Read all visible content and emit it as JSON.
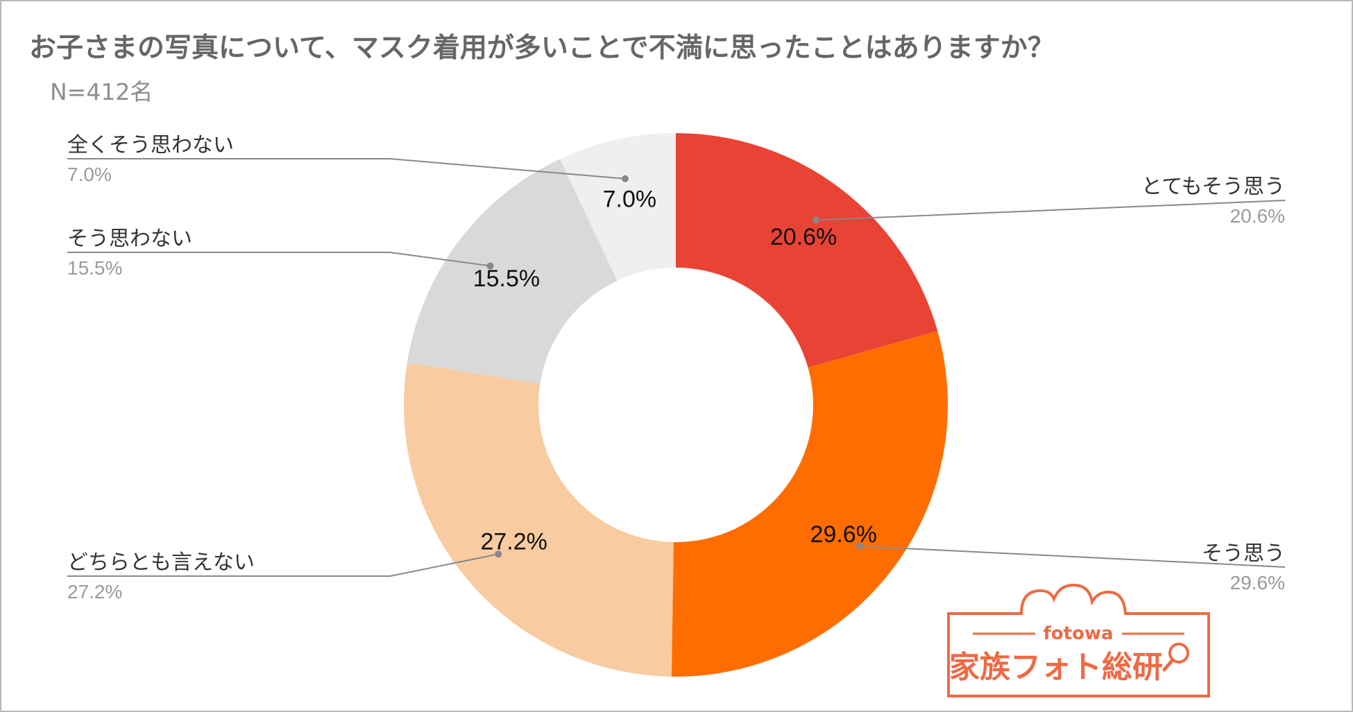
{
  "title": "お子さまの写真について、マスク着用が多いことで不満に思ったことはありますか？",
  "sample_size": "N=412名",
  "colors": {
    "strongly_agree": "#e94335",
    "agree": "#ff6d00",
    "neutral": "#f8cba0",
    "disagree": "#d9d9d9",
    "strongly_disagree": "#efefef",
    "leader": "#888888",
    "logo": "#ee6a43"
  },
  "chart_data": {
    "type": "pie",
    "donut": true,
    "unit": "%",
    "slices": [
      {
        "name": "とてもそう思う",
        "value": 20.6,
        "label": "20.6%",
        "color": "#e94335"
      },
      {
        "name": "そう思う",
        "value": 29.6,
        "label": "29.6%",
        "color": "#ff6d00"
      },
      {
        "name": "どちらとも言えない",
        "value": 27.2,
        "label": "27.2%",
        "color": "#f8cba0"
      },
      {
        "name": "そう思わない",
        "value": 15.5,
        "label": "15.5%",
        "color": "#d9d9d9"
      },
      {
        "name": "全くそう思わない",
        "value": 7.0,
        "label": "7.0%",
        "color": "#efefef"
      }
    ],
    "start": "12 o'clock",
    "direction": "clockwise",
    "legend": "callout labels with leader lines"
  },
  "logo": {
    "small_text": "fotowa",
    "big_text": "家族フォト総研"
  }
}
